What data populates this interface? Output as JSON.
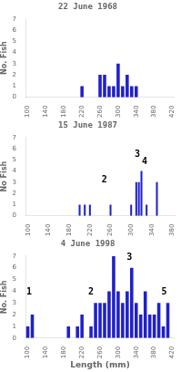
{
  "chart_data": [
    {
      "type": "bar",
      "title": "22 June 1968",
      "ylabel": "No. Fish",
      "x": [
        220,
        260,
        270,
        280,
        290,
        300,
        310,
        320,
        330,
        340
      ],
      "values": [
        1,
        2,
        2,
        1,
        1,
        3,
        1,
        2,
        1,
        1
      ],
      "color": "#2020cc",
      "xlim": [
        95,
        425
      ],
      "xticks": [
        100,
        140,
        180,
        220,
        260,
        300,
        340,
        380,
        420
      ],
      "ylim": [
        0,
        7
      ],
      "yticks": [
        0,
        1,
        2,
        3,
        4,
        5,
        6,
        7
      ],
      "grid": false,
      "annotations": []
    },
    {
      "type": "bar",
      "title": "15 June 1987",
      "ylabel": "No Fish",
      "x": [
        200,
        210,
        220,
        260,
        300,
        310,
        315,
        320,
        330,
        350
      ],
      "values": [
        1,
        1,
        1,
        1,
        1,
        3,
        3,
        4,
        1,
        3
      ],
      "color": "#2020cc",
      "xlim": [
        95,
        385
      ],
      "xticks": [
        100,
        140,
        180,
        220,
        260,
        300,
        340,
        380
      ],
      "ylim": [
        0,
        7
      ],
      "yticks": [
        0,
        1,
        2,
        3,
        4,
        5,
        6,
        7
      ],
      "grid": false,
      "annotations": [
        {
          "x": 248,
          "y": 2.8,
          "text": "2"
        },
        {
          "x": 312,
          "y": 5.1,
          "text": "3"
        },
        {
          "x": 326,
          "y": 4.4,
          "text": "4"
        }
      ]
    },
    {
      "type": "bar",
      "title": "4 June 1998",
      "ylabel": "No. Fish",
      "xlabel": "Length (mm)",
      "x": [
        100,
        110,
        190,
        210,
        220,
        240,
        250,
        260,
        270,
        280,
        290,
        300,
        310,
        320,
        330,
        340,
        350,
        360,
        370,
        380,
        390,
        400,
        410
      ],
      "values": [
        1,
        2,
        1,
        1,
        2,
        1,
        3,
        3,
        3,
        4,
        7,
        4,
        3,
        4,
        6,
        3,
        2,
        4,
        2,
        2,
        3,
        1,
        3
      ],
      "color": "#2020cc",
      "xlim": [
        95,
        425
      ],
      "xticks": [
        100,
        140,
        180,
        220,
        260,
        300,
        340,
        380,
        420
      ],
      "ylim": [
        0,
        7
      ],
      "yticks": [
        0,
        1,
        2,
        3,
        4,
        5,
        6,
        7
      ],
      "grid": false,
      "annotations": [
        {
          "x": 103,
          "y": 3.5,
          "text": "1"
        },
        {
          "x": 240,
          "y": 3.5,
          "text": "2"
        },
        {
          "x": 325,
          "y": 6.5,
          "text": "3"
        },
        {
          "x": 402,
          "y": 3.5,
          "text": "5"
        }
      ]
    }
  ]
}
